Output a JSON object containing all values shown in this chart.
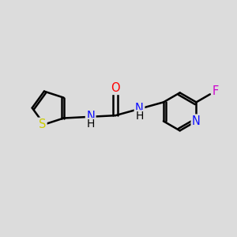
{
  "background_color": "#dcdcdc",
  "figure_size": [
    3.0,
    3.0
  ],
  "dpi": 100,
  "atom_colors": {
    "C": "#000000",
    "N": "#1010ff",
    "O": "#ff0000",
    "S": "#cccc00",
    "F": "#cc00cc",
    "H": "#000000"
  },
  "bond_color": "#000000",
  "bond_width": 1.8,
  "font_size": 10.5
}
